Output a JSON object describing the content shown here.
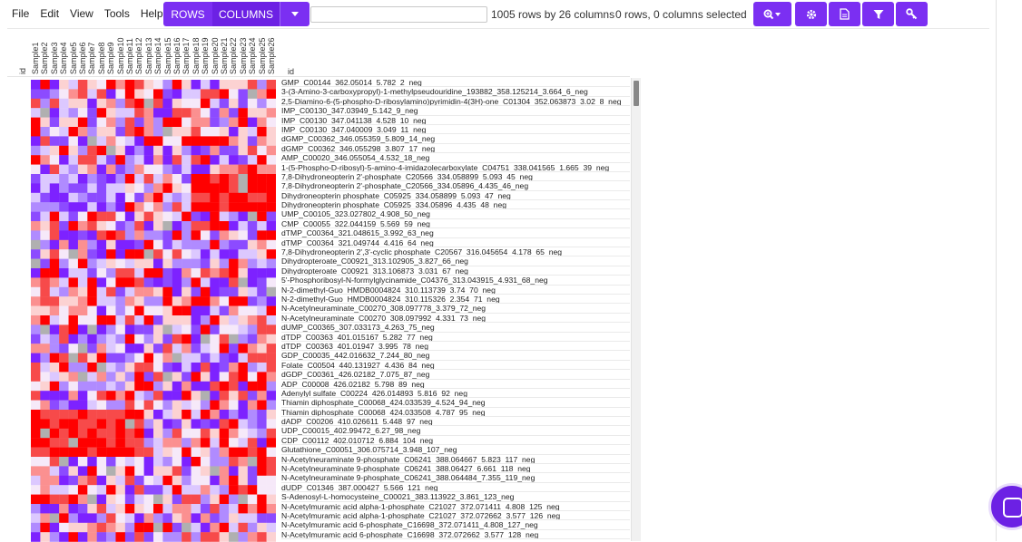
{
  "menu": [
    "File",
    "Edit",
    "View",
    "Tools",
    "Help"
  ],
  "toggle": {
    "rows_label": "ROWS",
    "columns_label": "COLUMNS"
  },
  "search": {
    "value": "",
    "placeholder": ""
  },
  "status": {
    "dimensions": "1005 rows by 26 columns",
    "selection": "0 rows, 0 columns selected"
  },
  "toolbar_icons": [
    "zoom-icon",
    "gear-icon",
    "file-icon",
    "filter-icon",
    "key-icon"
  ],
  "accent": "#7b2ff2",
  "heatmap_colors": [
    "#ff0000",
    "#f74a4a",
    "#fb9090",
    "#fcd2d2",
    "#f6e9f9",
    "#dcc8ff",
    "#b08bff",
    "#8c4bff",
    "#7d22ff",
    "#b0b0b0"
  ],
  "row_id_header": "id",
  "column_headers": [
    "id",
    "Sample1",
    "Sample2",
    "Sample3",
    "Sample4",
    "Sample5",
    "Sample6",
    "Sample7",
    "Sample8",
    "Sample9",
    "Sample10",
    "Sample11",
    "Sample12",
    "Sample13",
    "Sample14",
    "Sample15",
    "Sample16",
    "Sample17",
    "Sample18",
    "Sample19",
    "Sample20",
    "Sample21",
    "Sample22",
    "Sample23",
    "Sample24",
    "Sample25",
    "Sample26"
  ],
  "rows": [
    "GMP_C00144_362.05014_5.782_2_neg",
    "3-(3-Amino-3-carboxypropyl)-1-methylpseudouridine_193882_358.125214_3.664_6_neg",
    "2,5-Diamino-6-(5-phospho-D-ribosylamino)pyrimidin-4(3H)-one_C01304_352.063873_3.02_8_neg",
    "IMP_C00130_347.03949_5.142_9_neg",
    "IMP_C00130_347.041138_4.528_10_neg",
    "IMP_C00130_347.040009_3.049_11_neg",
    "dGMP_C00362_346.055359_5.809_14_neg",
    "dGMP_C00362_346.055298_3.807_17_neg",
    "AMP_C00020_346.055054_4.532_18_neg",
    "1-(5-Phospho-D-ribosyl)-5-amino-4-imidazolecarboxylate_C04751_338.041565_1.665_39_neg",
    "7,8-Dihydroneopterin 2'-phosphate_C20566_334.058899_5.093_45_neg",
    "7,8-Dihydroneopterin 2'-phosphate_C20566_334.05896_4.435_46_neg",
    "Dihydroneopterin phosphate_C05925_334.058899_5.093_47_neg",
    "Dihydroneopterin phosphate_C05925_334.05896_4.435_48_neg",
    "UMP_C00105_323.027802_4.908_50_neg",
    "CMP_C00055_322.044159_5.569_59_neg",
    "dTMP_C00364_321.048615_3.992_63_neg",
    "dTMP_C00364_321.049744_4.416_64_neg",
    "7,8-Dihydroneopterin 2',3'-cyclic phosphate_C20567_316.045654_4.178_65_neg",
    "Dihydropteroate_C00921_313.102905_3.827_66_neg",
    "Dihydropteroate_C00921_313.106873_3.031_67_neg",
    "5'-Phosphoribosyl-N-formylglycinamide_C04376_313.043915_4.931_68_neg",
    "N-2-dimethyl-Guo_HMDB0004824_310.113739_3.74_70_neg",
    "N-2-dimethyl-Guo_HMDB0004824_310.115326_2.354_71_neg",
    "N-Acetylneuraminate_C00270_308.097778_3.379_72_neg",
    "N-Acetylneuraminate_C00270_308.097992_4.331_73_neg",
    "dUMP_C00365_307.033173_4.263_75_neg",
    "dTDP_C00363_401.015167_5.282_77_neg",
    "dTDP_C00363_401.01947_3.995_78_neg",
    "GDP_C00035_442.016632_7.244_80_neg",
    "Folate_C00504_440.131927_4.436_84_neg",
    "dGDP_C00361_426.02182_7.075_87_neg",
    "ADP_C00008_426.02182_5.798_89_neg",
    "Adenylyl sulfate_C00224_426.014893_5.816_92_neg",
    "Thiamin diphosphate_C00068_424.033539_4.524_94_neg",
    "Thiamin diphosphate_C00068_424.033508_4.787_95_neg",
    "dADP_C00206_410.026611_5.448_97_neg",
    "UDP_C00015_402.99472_6.27_98_neg",
    "CDP_C00112_402.010712_6.884_104_neg",
    "Glutathione_C00051_306.075714_3.948_107_neg",
    "N-Acetylneuraminate 9-phosphate_C06241_388.064667_5.823_117_neg",
    "N-Acetylneuraminate 9-phosphate_C06241_388.06427_6.661_118_neg",
    "N-Acetylneuraminate 9-phosphate_C06241_388.064484_7.355_119_neg",
    "dUDP_C01346_387.000427_5.566_121_neg",
    "S-Adenosyl-L-homocysteine_C00021_383.113922_3.861_123_neg",
    "N-Acetylmuramic acid alpha-1-phosphate_C21027_372.071411_4.808_125_neg",
    "N-Acetylmuramic acid alpha-1-phosphate_C21027_372.072662_3.577_126_neg",
    "N-Acetylmuramic acid 6-phosphate_C16698_372.071411_4.808_127_neg",
    "N-Acetylmuramic acid 6-phosphate_C16698_372.072662_3.577_128_neg"
  ]
}
